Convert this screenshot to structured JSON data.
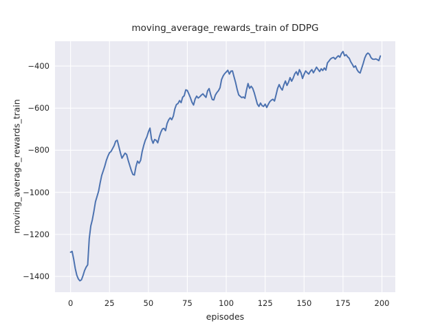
{
  "figure": {
    "title": "moving_average_rewards_train of DDPG",
    "xlabel": "episodes",
    "ylabel": "moving_average_rewards_train"
  },
  "chart_data": {
    "type": "line",
    "title": "moving_average_rewards_train of DDPG",
    "xlabel": "episodes",
    "ylabel": "moving_average_rewards_train",
    "grid": true,
    "legend": false,
    "x": {
      "start": 0,
      "step": 1,
      "count": 200
    },
    "xticks": [
      0,
      25,
      50,
      75,
      100,
      125,
      150,
      175,
      200
    ],
    "yticks": [
      -400,
      -600,
      -800,
      -1000,
      -1200,
      -1400
    ],
    "xlim": [
      -10,
      208.6
    ],
    "ylim": [
      -1475,
      -282
    ],
    "style": {
      "line_color": "#4c72b0",
      "line_width": 2,
      "plot_bg": "#eaeaf2",
      "grid_color": "#ffffff",
      "fig_bg": "#ffffff",
      "text_color": "#262626"
    },
    "series": [
      {
        "name": "moving_average_rewards_train",
        "color": "#4c72b0",
        "values": [
          -1285,
          -1281,
          -1318,
          -1362,
          -1394,
          -1412,
          -1421,
          -1416,
          -1396,
          -1372,
          -1356,
          -1345,
          -1220,
          -1160,
          -1130,
          -1090,
          -1045,
          -1020,
          -995,
          -955,
          -920,
          -898,
          -875,
          -848,
          -828,
          -812,
          -806,
          -792,
          -778,
          -757,
          -753,
          -782,
          -812,
          -838,
          -826,
          -814,
          -820,
          -848,
          -872,
          -896,
          -915,
          -918,
          -878,
          -852,
          -862,
          -848,
          -806,
          -777,
          -753,
          -737,
          -713,
          -695,
          -747,
          -767,
          -749,
          -753,
          -765,
          -736,
          -714,
          -699,
          -696,
          -707,
          -673,
          -656,
          -646,
          -655,
          -638,
          -603,
          -583,
          -578,
          -564,
          -574,
          -548,
          -541,
          -513,
          -516,
          -533,
          -551,
          -572,
          -585,
          -557,
          -543,
          -552,
          -546,
          -538,
          -532,
          -541,
          -549,
          -518,
          -507,
          -536,
          -559,
          -561,
          -538,
          -526,
          -517,
          -503,
          -464,
          -447,
          -436,
          -428,
          -420,
          -438,
          -424,
          -423,
          -451,
          -478,
          -511,
          -537,
          -544,
          -550,
          -547,
          -553,
          -514,
          -483,
          -506,
          -496,
          -506,
          -527,
          -554,
          -581,
          -592,
          -576,
          -588,
          -592,
          -581,
          -597,
          -582,
          -569,
          -562,
          -558,
          -566,
          -537,
          -506,
          -488,
          -504,
          -514,
          -489,
          -471,
          -492,
          -477,
          -455,
          -472,
          -457,
          -437,
          -427,
          -443,
          -417,
          -432,
          -459,
          -439,
          -423,
          -431,
          -438,
          -425,
          -417,
          -432,
          -419,
          -405,
          -416,
          -426,
          -413,
          -421,
          -409,
          -419,
          -385,
          -376,
          -366,
          -361,
          -359,
          -367,
          -358,
          -351,
          -358,
          -340,
          -331,
          -351,
          -346,
          -356,
          -363,
          -380,
          -392,
          -406,
          -399,
          -417,
          -428,
          -433,
          -410,
          -387,
          -361,
          -345,
          -338,
          -344,
          -360,
          -367,
          -368,
          -366,
          -369,
          -374,
          -352
        ]
      }
    ]
  }
}
